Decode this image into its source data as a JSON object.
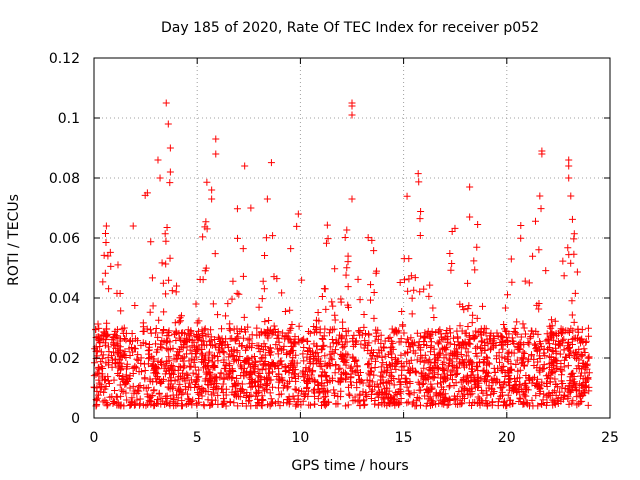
{
  "chart_data": {
    "type": "scatter",
    "title": "Day 185 of 2020, Rate Of TEC Index for receiver p052",
    "xlabel": "GPS time / hours",
    "ylabel": "ROTI / TECUs",
    "xlim": [
      0,
      25
    ],
    "ylim": [
      0,
      0.12
    ],
    "xticks": [
      0,
      5,
      10,
      15,
      20,
      25
    ],
    "xtick_labels": [
      "0",
      "5",
      "10",
      "15",
      "20",
      "25"
    ],
    "yticks": [
      0,
      0.02,
      0.04,
      0.06,
      0.08,
      0.1,
      0.12
    ],
    "ytick_labels": [
      "0",
      "0.02",
      "0.04",
      "0.06",
      "0.08",
      "0.1",
      "0.12"
    ],
    "grid": true,
    "marker": "plus",
    "series": [
      {
        "name": "p052",
        "color": "#ff0000",
        "x_range": [
          0,
          24
        ],
        "y_baseline_range": [
          0.004,
          0.03
        ],
        "notable_peaks": [
          {
            "x": 3.5,
            "y": 0.105
          },
          {
            "x": 3.6,
            "y": 0.098
          },
          {
            "x": 3.7,
            "y": 0.09
          },
          {
            "x": 3.1,
            "y": 0.086
          },
          {
            "x": 3.2,
            "y": 0.08
          },
          {
            "x": 3.7,
            "y": 0.082
          },
          {
            "x": 5.9,
            "y": 0.093
          },
          {
            "x": 5.9,
            "y": 0.088
          },
          {
            "x": 5.7,
            "y": 0.076
          },
          {
            "x": 5.7,
            "y": 0.073
          },
          {
            "x": 7.3,
            "y": 0.084
          },
          {
            "x": 12.5,
            "y": 0.105
          },
          {
            "x": 12.5,
            "y": 0.104
          },
          {
            "x": 12.5,
            "y": 0.101
          },
          {
            "x": 12.5,
            "y": 0.073
          },
          {
            "x": 18.2,
            "y": 0.077
          },
          {
            "x": 18.2,
            "y": 0.067
          },
          {
            "x": 21.7,
            "y": 0.089
          },
          {
            "x": 21.7,
            "y": 0.088
          },
          {
            "x": 21.6,
            "y": 0.074
          },
          {
            "x": 23.0,
            "y": 0.086
          },
          {
            "x": 23.0,
            "y": 0.084
          },
          {
            "x": 23.0,
            "y": 0.08
          },
          {
            "x": 23.1,
            "y": 0.074
          },
          {
            "x": 1.9,
            "y": 0.064
          },
          {
            "x": 0.6,
            "y": 0.064
          },
          {
            "x": 9.9,
            "y": 0.068
          },
          {
            "x": 8.4,
            "y": 0.073
          },
          {
            "x": 7.6,
            "y": 0.07
          }
        ]
      }
    ]
  }
}
